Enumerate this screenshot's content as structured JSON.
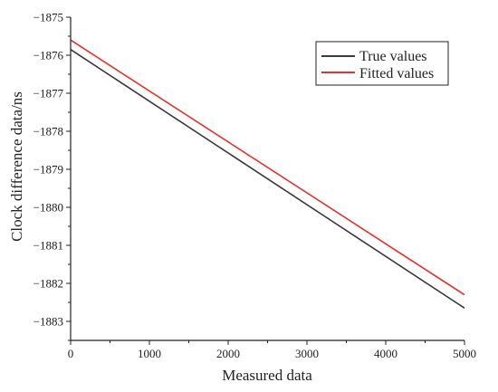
{
  "chart_data": {
    "type": "line",
    "title": "",
    "xlabel": "Measured data",
    "ylabel": "Clock difference data/ns",
    "xlim": [
      0,
      5000
    ],
    "ylim": [
      -1883.5,
      -1875
    ],
    "xticks": [
      0,
      1000,
      2000,
      3000,
      4000,
      5000
    ],
    "yticks": [
      -1875,
      -1876,
      -1877,
      -1878,
      -1879,
      -1880,
      -1881,
      -1882,
      -1883
    ],
    "grid": false,
    "legend_position": "top-right",
    "series": [
      {
        "name": "True values",
        "color": "#3a3a3a",
        "x": [
          0,
          5000
        ],
        "y": [
          -1875.85,
          -1882.65
        ]
      },
      {
        "name": "Fitted values",
        "color": "#e8302a",
        "x": [
          0,
          5000
        ],
        "y": [
          -1875.6,
          -1882.3
        ]
      }
    ]
  }
}
